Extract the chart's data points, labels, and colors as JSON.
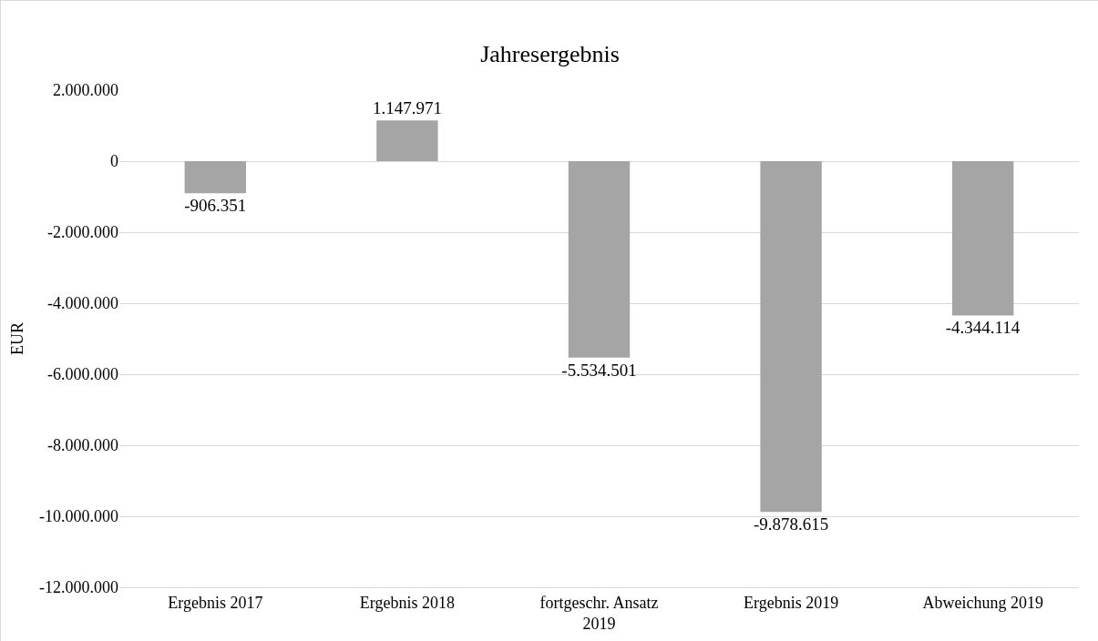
{
  "chart_data": {
    "type": "bar",
    "title": "Jahresergebnis",
    "ylabel": "EUR",
    "categories": [
      "Ergebnis 2017",
      "Ergebnis 2018",
      "fortgeschr. Ansatz 2019",
      "Ergebnis 2019",
      "Abweichung 2019"
    ],
    "values": [
      -906351,
      1147971,
      -5534501,
      -9878615,
      -4344114
    ],
    "value_labels": [
      "-906.351",
      "1.147.971",
      "-5.534.501",
      "-9.878.615",
      "-4.344.114"
    ],
    "color": "#a5a5a5",
    "ylim": [
      -12000000,
      2000000
    ],
    "yticks": [
      {
        "value": -12000000,
        "label": "-12.000.000"
      },
      {
        "value": -10000000,
        "label": "-10.000.000"
      },
      {
        "value": -8000000,
        "label": "-8.000.000"
      },
      {
        "value": -6000000,
        "label": "-6.000.000"
      },
      {
        "value": -4000000,
        "label": "-4.000.000"
      },
      {
        "value": -2000000,
        "label": "-2.000.000"
      },
      {
        "value": 0,
        "label": "0"
      },
      {
        "value": 2000000,
        "label": "2.000.000"
      }
    ],
    "grid": "y"
  }
}
